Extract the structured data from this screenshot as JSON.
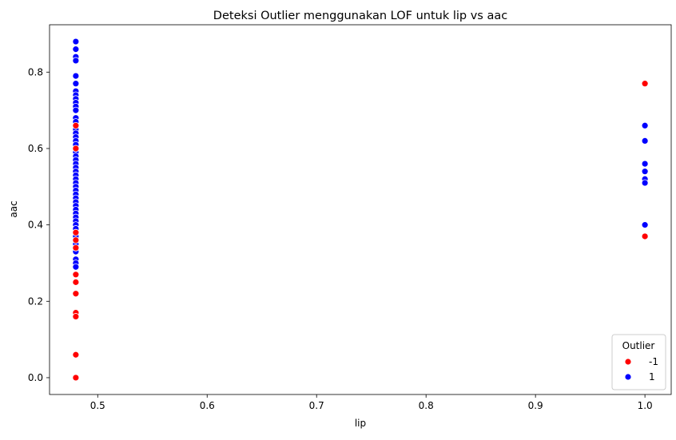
{
  "chart_data": {
    "type": "scatter",
    "title": "Deteksi Outlier menggunakan LOF untuk lip vs aac",
    "xlabel": "lip",
    "ylabel": "aac",
    "xlim": [
      0.456,
      1.024
    ],
    "ylim": [
      -0.044,
      0.924
    ],
    "xticks": [
      "0.5",
      "0.6",
      "0.7",
      "0.8",
      "0.9",
      "1.0"
    ],
    "yticks": [
      "0.0",
      "0.2",
      "0.4",
      "0.6",
      "0.8"
    ],
    "grid": false,
    "legend": {
      "title": "Outlier",
      "placement": "lower-right",
      "entries": [
        {
          "label": "-1",
          "color": "#ff0000"
        },
        {
          "label": "1",
          "color": "#0000ff"
        }
      ]
    },
    "series": [
      {
        "name": "1",
        "color": "#0000ff",
        "points": [
          [
            0.48,
            0.88
          ],
          [
            0.48,
            0.86
          ],
          [
            0.48,
            0.84
          ],
          [
            0.48,
            0.83
          ],
          [
            0.48,
            0.79
          ],
          [
            0.48,
            0.77
          ],
          [
            0.48,
            0.75
          ],
          [
            0.48,
            0.74
          ],
          [
            0.48,
            0.73
          ],
          [
            0.48,
            0.72
          ],
          [
            0.48,
            0.71
          ],
          [
            0.48,
            0.7
          ],
          [
            0.48,
            0.68
          ],
          [
            0.48,
            0.67
          ],
          [
            0.48,
            0.65
          ],
          [
            0.48,
            0.64
          ],
          [
            0.48,
            0.63
          ],
          [
            0.48,
            0.62
          ],
          [
            0.48,
            0.61
          ],
          [
            0.48,
            0.6
          ],
          [
            0.48,
            0.59
          ],
          [
            0.48,
            0.58
          ],
          [
            0.48,
            0.57
          ],
          [
            0.48,
            0.56
          ],
          [
            0.48,
            0.55
          ],
          [
            0.48,
            0.54
          ],
          [
            0.48,
            0.53
          ],
          [
            0.48,
            0.52
          ],
          [
            0.48,
            0.51
          ],
          [
            0.48,
            0.5
          ],
          [
            0.48,
            0.49
          ],
          [
            0.48,
            0.48
          ],
          [
            0.48,
            0.47
          ],
          [
            0.48,
            0.46
          ],
          [
            0.48,
            0.45
          ],
          [
            0.48,
            0.44
          ],
          [
            0.48,
            0.43
          ],
          [
            0.48,
            0.42
          ],
          [
            0.48,
            0.41
          ],
          [
            0.48,
            0.4
          ],
          [
            0.48,
            0.39
          ],
          [
            0.48,
            0.38
          ],
          [
            0.48,
            0.37
          ],
          [
            0.48,
            0.36
          ],
          [
            0.48,
            0.35
          ],
          [
            0.48,
            0.33
          ],
          [
            0.48,
            0.31
          ],
          [
            0.48,
            0.3
          ],
          [
            0.48,
            0.29
          ],
          [
            1.0,
            0.66
          ],
          [
            1.0,
            0.62
          ],
          [
            1.0,
            0.56
          ],
          [
            1.0,
            0.54
          ],
          [
            1.0,
            0.52
          ],
          [
            1.0,
            0.51
          ],
          [
            1.0,
            0.4
          ]
        ]
      },
      {
        "name": "-1",
        "color": "#ff0000",
        "points": [
          [
            0.48,
            0.66
          ],
          [
            0.48,
            0.6
          ],
          [
            0.48,
            0.38
          ],
          [
            0.48,
            0.36
          ],
          [
            0.48,
            0.34
          ],
          [
            0.48,
            0.27
          ],
          [
            0.48,
            0.25
          ],
          [
            0.48,
            0.22
          ],
          [
            0.48,
            0.17
          ],
          [
            0.48,
            0.16
          ],
          [
            0.48,
            0.06
          ],
          [
            0.48,
            0.0
          ],
          [
            1.0,
            0.77
          ],
          [
            1.0,
            0.37
          ]
        ]
      }
    ]
  }
}
